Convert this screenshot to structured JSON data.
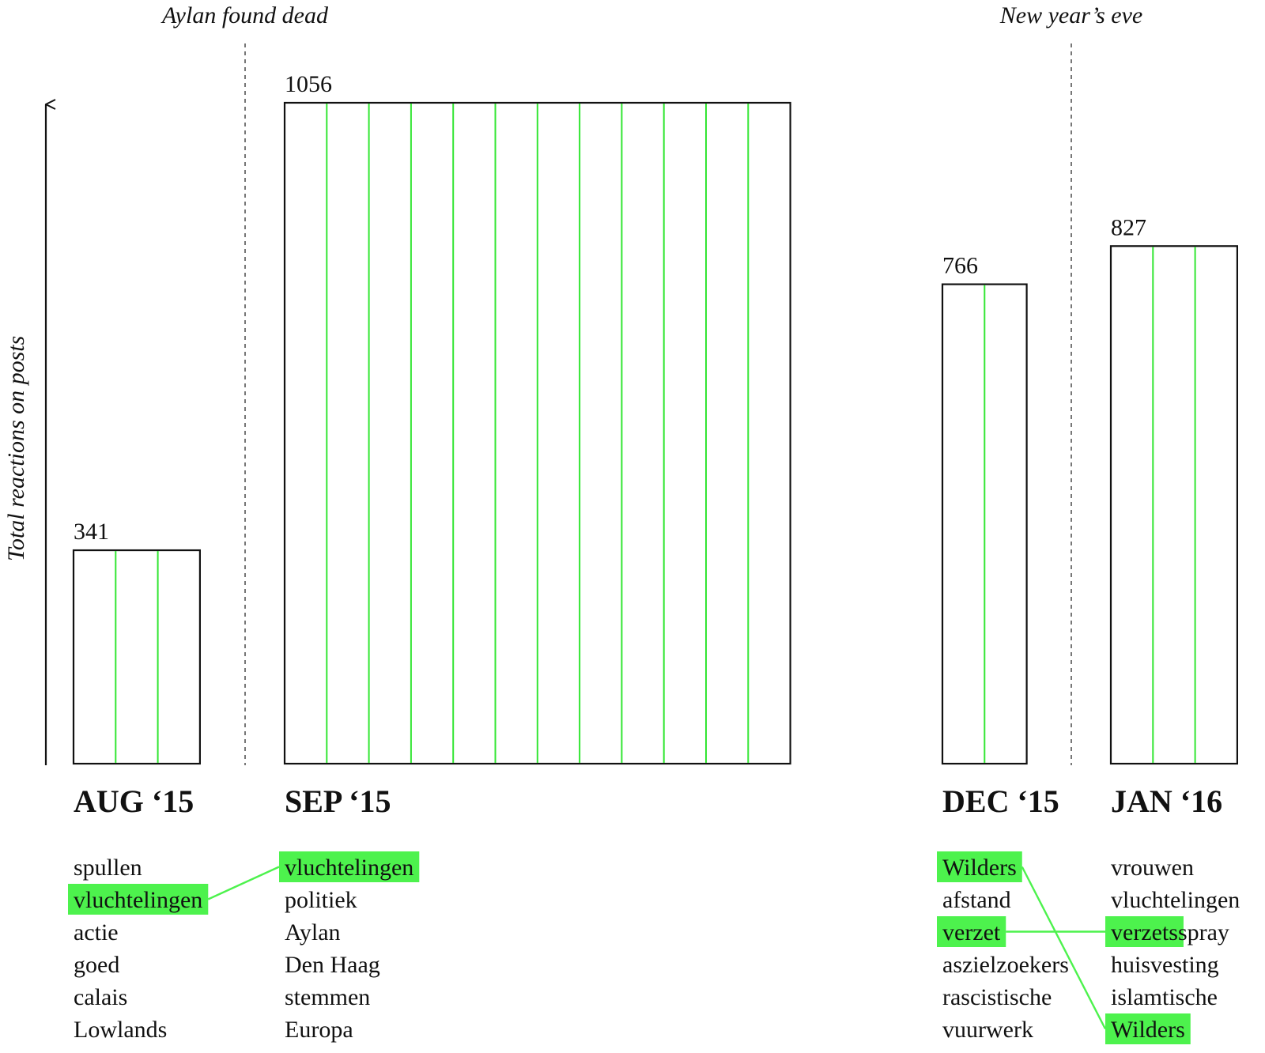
{
  "chart_data": {
    "type": "bar",
    "ylabel": "Total reactions on posts",
    "categories": [
      "AUG ‘15",
      "SEP ‘15",
      "DEC ‘15",
      "JAN ‘16"
    ],
    "values": [
      341,
      1056,
      766,
      827
    ],
    "subdivisions": [
      3,
      12,
      2,
      3
    ],
    "annotations": [
      "Aylan found dead",
      "New year’s eve"
    ],
    "top_terms": [
      [
        "spullen",
        "vluchtelingen",
        "actie",
        "goed",
        "calais",
        "Lowlands"
      ],
      [
        "vluchtelingen",
        "politiek",
        "Aylan",
        "Den Haag",
        "stemmen",
        "Europa"
      ],
      [
        "Wilders",
        "afstand",
        "verzet",
        "aszielzoekers",
        "rascistische",
        "vuurwerk"
      ],
      [
        "vrouwen",
        "vluchtelingen",
        "verzetsspray",
        "huisvesting",
        "islamtische",
        "Wilders"
      ]
    ],
    "highlighted_terms": [
      {
        "month": "AUG ‘15",
        "term": "vluchtelingen"
      },
      {
        "month": "SEP ‘15",
        "term": "vluchtelingen"
      },
      {
        "month": "DEC ‘15",
        "term": "Wilders"
      },
      {
        "month": "DEC ‘15",
        "term": "verzet"
      },
      {
        "month": "JAN ‘16",
        "term": "verzets"
      },
      {
        "month": "JAN ‘16",
        "term": "Wilders"
      }
    ],
    "links": [
      {
        "from": "AUG ‘15 vluchtelingen",
        "to": "SEP ‘15 vluchtelingen"
      },
      {
        "from": "DEC ‘15 verzet",
        "to": "JAN ‘16 verzetsspray"
      },
      {
        "from": "DEC ‘15 Wilders",
        "to": "JAN ‘16 Wilders"
      }
    ],
    "colors": {
      "highlight": "#4df24d",
      "division": "#33e633",
      "axis": "#111111"
    }
  }
}
